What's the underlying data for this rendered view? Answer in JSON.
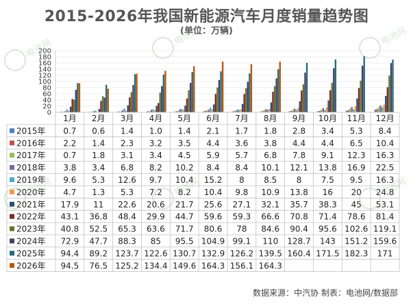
{
  "title": "2015-2026年我国新能源汽车月度销量趋势图",
  "subtitle": "(单位：万辆)",
  "footer": "数据来源：中汽协    制表：电池网/数据部",
  "watermark_text": "电池网",
  "chart_data": {
    "type": "bar",
    "title": "2015-2026年我国新能源汽车月度销量趋势图",
    "unit": "(单位：万辆)",
    "categories": [
      "1月",
      "2月",
      "3月",
      "4月",
      "5月",
      "6月",
      "7月",
      "8月",
      "9月",
      "10月",
      "11月",
      "12月"
    ],
    "ylim": [
      0,
      200
    ],
    "yticks": [
      "0",
      "20",
      "40",
      "60",
      "80",
      "100",
      "120",
      "140",
      "160",
      "180",
      "200"
    ],
    "grid": true,
    "legend": "table-left",
    "series": [
      {
        "name": "2015年",
        "color": "#4f81bd",
        "values": [
          0.7,
          0.6,
          1.4,
          1.0,
          1.4,
          2.1,
          1.7,
          1.8,
          2.8,
          3.4,
          5.3,
          8.4
        ],
        "display": [
          "0.7",
          "0.6",
          "1.4",
          "1.0",
          "1.4",
          "2.1",
          "1.7",
          "1.8",
          "2.8",
          "3.4",
          "5.3",
          "8.4"
        ]
      },
      {
        "name": "2016年",
        "color": "#c0504d",
        "values": [
          2.2,
          1.4,
          2.3,
          3.2,
          3.5,
          4.4,
          3.6,
          3.8,
          4.4,
          4.4,
          6.5,
          10.4
        ],
        "display": [
          "2.2",
          "1.4",
          "2.3",
          "3.2",
          "3.5",
          "4.4",
          "3.6",
          "3.8",
          "4.4",
          "4.4",
          "6.5",
          "10.4"
        ]
      },
      {
        "name": "2017年",
        "color": "#9bbb59",
        "values": [
          0.7,
          1.8,
          3.1,
          3.4,
          4.5,
          5.9,
          5.7,
          6.8,
          7.8,
          9.1,
          12.3,
          16.3
        ],
        "display": [
          "0.7",
          "1.8",
          "3.1",
          "3.4",
          "4.5",
          "5.9",
          "5.7",
          "6.8",
          "7.8",
          "9.1",
          "12.3",
          "16.3"
        ]
      },
      {
        "name": "2018年",
        "color": "#8064a2",
        "values": [
          3.8,
          3.4,
          6.8,
          8.2,
          10.2,
          8.4,
          8.4,
          10.1,
          12.1,
          13.8,
          16.9,
          22.5
        ],
        "display": [
          "3.8",
          "3.4",
          "6.8",
          "8.2",
          "10.2",
          "8.4",
          "8.4",
          "10.1",
          "12.1",
          "13.8",
          "16.9",
          "22.5"
        ]
      },
      {
        "name": "2019年",
        "color": "#4bacc6",
        "values": [
          9.6,
          5.3,
          12.6,
          9.7,
          10.4,
          15.2,
          8,
          8.5,
          8,
          7.5,
          9.5,
          16.3
        ],
        "display": [
          "9.6",
          "5.3",
          "12.6",
          "9.7",
          "10.4",
          "15.2",
          "8",
          "8.5",
          "8",
          "7.5",
          "9.5",
          "16.3"
        ]
      },
      {
        "name": "2020年",
        "color": "#f79646",
        "values": [
          4.7,
          1.3,
          5.3,
          7.2,
          8.2,
          10.4,
          9.8,
          10.9,
          13.8,
          16,
          20,
          24.8
        ],
        "display": [
          "4.7",
          "1.3",
          "5.3",
          "7.2",
          "8.2",
          "10.4",
          "9.8",
          "10.9",
          "13.8",
          "16",
          "20",
          "24.8"
        ]
      },
      {
        "name": "2021年",
        "color": "#2c4d75",
        "values": [
          17.9,
          11,
          22.6,
          20.6,
          21.7,
          25.6,
          27.1,
          32.1,
          35.7,
          38.3,
          45,
          53.1
        ],
        "display": [
          "17.9",
          "11",
          "22.6",
          "20.6",
          "21.7",
          "25.6",
          "27.1",
          "32.1",
          "35.7",
          "38.3",
          "45",
          "53.1"
        ]
      },
      {
        "name": "2022年",
        "color": "#772c2a",
        "values": [
          43.1,
          36.8,
          48.4,
          29.9,
          44.7,
          59.6,
          59.3,
          66.6,
          70.8,
          71.4,
          78.6,
          81.4
        ],
        "display": [
          "43.1",
          "36.8",
          "48.4",
          "29.9",
          "44.7",
          "59.6",
          "59.3",
          "66.6",
          "70.8",
          "71.4",
          "78.6",
          "81.4"
        ]
      },
      {
        "name": "2023年",
        "color": "#5f7530",
        "values": [
          40.8,
          52.5,
          65.3,
          63.6,
          71.7,
          80.6,
          78,
          84.6,
          90.4,
          95.6,
          102.6,
          119.1
        ],
        "display": [
          "40.8",
          "52.5",
          "65.3",
          "63.6",
          "71.7",
          "80.6",
          "78",
          "84.6",
          "90.4",
          "95.6",
          "102.6",
          "119.1"
        ]
      },
      {
        "name": "2024年",
        "color": "#4d3b62",
        "values": [
          72.9,
          47.7,
          88.3,
          85,
          95.5,
          104.9,
          99.1,
          110,
          128.7,
          143,
          151.2,
          159.6
        ],
        "display": [
          "72.9",
          "47.7",
          "88.3",
          "85",
          "95.5",
          "104.9",
          "99.1",
          "110",
          "128.7",
          "143",
          "151.2",
          "159.6"
        ]
      },
      {
        "name": "2025年",
        "color": "#276a7c",
        "values": [
          94.4,
          89.2,
          123.7,
          122.6,
          130.7,
          132.9,
          126.2,
          139.5,
          160.4,
          171.5,
          182.3,
          171
        ],
        "display": [
          "94.4",
          "89.2",
          "123.7",
          "122.6",
          "130.7",
          "132.9",
          "126.2",
          "139.5",
          "160.4",
          "171.5",
          "182.3",
          "171"
        ]
      },
      {
        "name": "2026年",
        "color": "#b65708",
        "values": [
          94.5,
          76.5,
          125.2,
          134.4,
          149.6,
          164.3,
          156.1,
          164.3,
          null,
          null,
          null,
          null
        ],
        "display": [
          "94.5",
          "76.5",
          "125.2",
          "134.4",
          "149.6",
          "164.3",
          "156.1",
          "164.3",
          "",
          "",
          "",
          ""
        ]
      }
    ]
  }
}
